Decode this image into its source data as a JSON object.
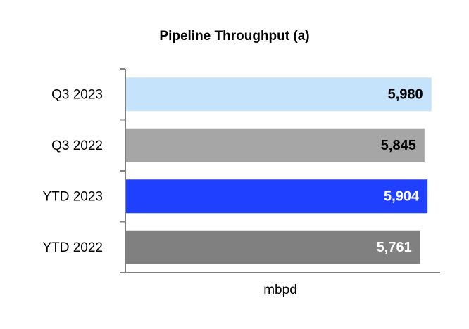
{
  "chart_data": {
    "type": "bar",
    "orientation": "horizontal",
    "title": "Pipeline Throughput (a)",
    "categories": [
      "Q3 2023",
      "Q3 2022",
      "YTD 2023",
      "YTD 2022"
    ],
    "values": [
      5980,
      5845,
      5904,
      5761
    ],
    "value_labels": [
      "5,980",
      "5,845",
      "5,904",
      "5,761"
    ],
    "colors": [
      "#c5e3fb",
      "#a6a6a6",
      "#1f40ff",
      "#808080"
    ],
    "value_label_colors": [
      "#000000",
      "#000000",
      "#ffffff",
      "#ffffff"
    ],
    "x_label": "mbpd",
    "xlim": [
      0,
      6150
    ]
  }
}
